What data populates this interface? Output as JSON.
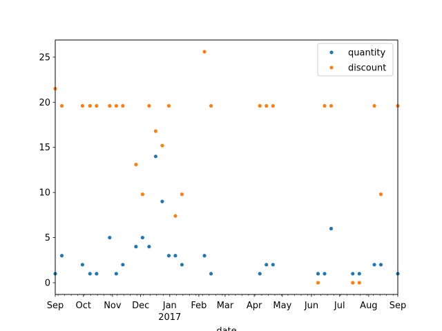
{
  "chart_data": {
    "type": "scatter",
    "xlabel": "date",
    "ylabel": "",
    "xlim": [
      "2016-09-01",
      "2017-09-01"
    ],
    "ylim": [
      -1.3,
      26.9
    ],
    "grid": false,
    "legend_position": "top-right",
    "x_ticks": [
      {
        "date": "2016-09-01",
        "label": "Sep"
      },
      {
        "date": "2016-10-01",
        "label": "Oct"
      },
      {
        "date": "2016-11-01",
        "label": "Nov"
      },
      {
        "date": "2016-12-01",
        "label": "Dec"
      },
      {
        "date": "2017-01-01",
        "label": "Jan",
        "sublabel": "2017"
      },
      {
        "date": "2017-02-01",
        "label": "Feb"
      },
      {
        "date": "2017-03-01",
        "label": "Mar"
      },
      {
        "date": "2017-04-01",
        "label": "Apr"
      },
      {
        "date": "2017-05-01",
        "label": "May"
      },
      {
        "date": "2017-06-01",
        "label": "Jun"
      },
      {
        "date": "2017-07-01",
        "label": "Jul"
      },
      {
        "date": "2017-08-01",
        "label": "Aug"
      },
      {
        "date": "2017-09-01",
        "label": "Sep"
      }
    ],
    "y_ticks": [
      0,
      5,
      10,
      15,
      20,
      25
    ],
    "series": [
      {
        "name": "quantity",
        "color": "#1f77b4",
        "points": [
          {
            "x": "2016-09-01",
            "y": 1
          },
          {
            "x": "2016-09-08",
            "y": 3
          },
          {
            "x": "2016-09-30",
            "y": 2
          },
          {
            "x": "2016-10-08",
            "y": 1
          },
          {
            "x": "2016-10-15",
            "y": 1
          },
          {
            "x": "2016-10-29",
            "y": 5
          },
          {
            "x": "2016-11-05",
            "y": 1
          },
          {
            "x": "2016-11-12",
            "y": 2
          },
          {
            "x": "2016-11-26",
            "y": 4
          },
          {
            "x": "2016-12-03",
            "y": 5
          },
          {
            "x": "2016-12-10",
            "y": 4
          },
          {
            "x": "2016-12-17",
            "y": 14
          },
          {
            "x": "2016-12-24",
            "y": 9
          },
          {
            "x": "2016-12-31",
            "y": 3
          },
          {
            "x": "2017-01-07",
            "y": 3
          },
          {
            "x": "2017-01-14",
            "y": 2
          },
          {
            "x": "2017-02-07",
            "y": 3
          },
          {
            "x": "2017-02-14",
            "y": 1
          },
          {
            "x": "2017-04-07",
            "y": 1
          },
          {
            "x": "2017-04-14",
            "y": 2
          },
          {
            "x": "2017-04-21",
            "y": 2
          },
          {
            "x": "2017-06-08",
            "y": 1
          },
          {
            "x": "2017-06-15",
            "y": 1
          },
          {
            "x": "2017-06-22",
            "y": 6
          },
          {
            "x": "2017-07-15",
            "y": 1
          },
          {
            "x": "2017-07-22",
            "y": 1
          },
          {
            "x": "2017-08-07",
            "y": 2
          },
          {
            "x": "2017-08-14",
            "y": 2
          },
          {
            "x": "2017-09-01",
            "y": 1
          }
        ]
      },
      {
        "name": "discount",
        "color": "#ff7f0e",
        "points": [
          {
            "x": "2016-09-01",
            "y": 21.5
          },
          {
            "x": "2016-09-08",
            "y": 19.6
          },
          {
            "x": "2016-09-30",
            "y": 19.6
          },
          {
            "x": "2016-10-08",
            "y": 19.6
          },
          {
            "x": "2016-10-15",
            "y": 19.6
          },
          {
            "x": "2016-10-29",
            "y": 19.6
          },
          {
            "x": "2016-11-05",
            "y": 19.6
          },
          {
            "x": "2016-11-12",
            "y": 19.6
          },
          {
            "x": "2016-11-26",
            "y": 13.1
          },
          {
            "x": "2016-12-03",
            "y": 9.8
          },
          {
            "x": "2016-12-10",
            "y": 19.6
          },
          {
            "x": "2016-12-17",
            "y": 16.8
          },
          {
            "x": "2016-12-24",
            "y": 15.2
          },
          {
            "x": "2016-12-31",
            "y": 19.6
          },
          {
            "x": "2017-01-07",
            "y": 7.4
          },
          {
            "x": "2017-01-14",
            "y": 9.8
          },
          {
            "x": "2017-02-07",
            "y": 25.6
          },
          {
            "x": "2017-02-14",
            "y": 19.6
          },
          {
            "x": "2017-04-07",
            "y": 19.6
          },
          {
            "x": "2017-04-14",
            "y": 19.6
          },
          {
            "x": "2017-04-21",
            "y": 19.6
          },
          {
            "x": "2017-06-08",
            "y": 0
          },
          {
            "x": "2017-06-15",
            "y": 19.6
          },
          {
            "x": "2017-06-22",
            "y": 19.6
          },
          {
            "x": "2017-07-15",
            "y": 0
          },
          {
            "x": "2017-07-22",
            "y": 0
          },
          {
            "x": "2017-08-07",
            "y": 19.6
          },
          {
            "x": "2017-08-14",
            "y": 9.8
          },
          {
            "x": "2017-09-01",
            "y": 19.6
          }
        ]
      }
    ]
  }
}
